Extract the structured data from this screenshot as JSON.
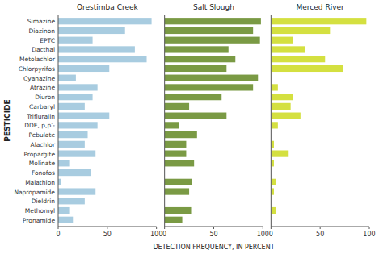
{
  "chart_data": [
    {
      "type": "bar",
      "orientation": "horizontal",
      "title": "Orestimba Creek",
      "ylabel": "PESTICIDE",
      "categories": [
        "Simazine",
        "Diazinon",
        "EPTC",
        "Dacthal",
        "Metolachlor",
        "Chlorpyrifos",
        "Cyanazine",
        "Atrazine",
        "Diuron",
        "Carbaryl",
        "Trifluralin",
        "DDE, p,pʹ-",
        "Pebulate",
        "Alachlor",
        "Propargite",
        "Molinate",
        "Fonofos",
        "Malathion",
        "Napropamide",
        "Dieldrin",
        "Methomyl",
        "Pronamide"
      ],
      "values": [
        95,
        68,
        35,
        78,
        90,
        52,
        18,
        40,
        35,
        27,
        52,
        40,
        30,
        27,
        38,
        12,
        33,
        3,
        38,
        27,
        12,
        15
      ],
      "color": "#a8cce0",
      "xlim": [
        0,
        100
      ],
      "xticks": [
        0,
        50,
        100
      ]
    },
    {
      "type": "bar",
      "orientation": "horizontal",
      "title": "Salt Slough",
      "xlabel": "DETECTION FREQUENCY, IN PERCENT",
      "categories": [
        "Simazine",
        "Diazinon",
        "EPTC",
        "Dacthal",
        "Metolachlor",
        "Chlorpyrifos",
        "Cyanazine",
        "Atrazine",
        "Diuron",
        "Carbaryl",
        "Trifluralin",
        "DDE, p,pʹ-",
        "Pebulate",
        "Alachlor",
        "Propargite",
        "Molinate",
        "Fonofos",
        "Malathion",
        "Napropamide",
        "Dieldrin",
        "Methomyl",
        "Pronamide"
      ],
      "values": [
        98,
        90,
        97,
        65,
        72,
        63,
        95,
        90,
        58,
        25,
        63,
        15,
        33,
        22,
        22,
        30,
        0,
        28,
        25,
        0,
        27,
        18
      ],
      "color": "#7a9a44",
      "xlim": [
        0,
        100
      ],
      "xticks": [
        0,
        50,
        100
      ],
      "tick_labels": "x"
    },
    {
      "type": "bar",
      "orientation": "horizontal",
      "title": "Merced River",
      "categories": [
        "Simazine",
        "Diazinon",
        "EPTC",
        "Dacthal",
        "Metolachlor",
        "Chlorpyrifos",
        "Cyanazine",
        "Atrazine",
        "Diuron",
        "Carbaryl",
        "Trifluralin",
        "DDE, p,pʹ-",
        "Pebulate",
        "Alachlor",
        "Propargite",
        "Molinate",
        "Fonofos",
        "Malathion",
        "Napropamide",
        "Dieldrin",
        "Methomyl",
        "Pronamide"
      ],
      "values": [
        97,
        60,
        22,
        35,
        55,
        73,
        0,
        7,
        22,
        20,
        30,
        7,
        0,
        3,
        18,
        3,
        0,
        5,
        3,
        0,
        5,
        0
      ],
      "color": "#d4e040",
      "xlim": [
        0,
        100
      ],
      "xticks": [
        0,
        50,
        100
      ],
      "tick_labels": "x"
    }
  ]
}
